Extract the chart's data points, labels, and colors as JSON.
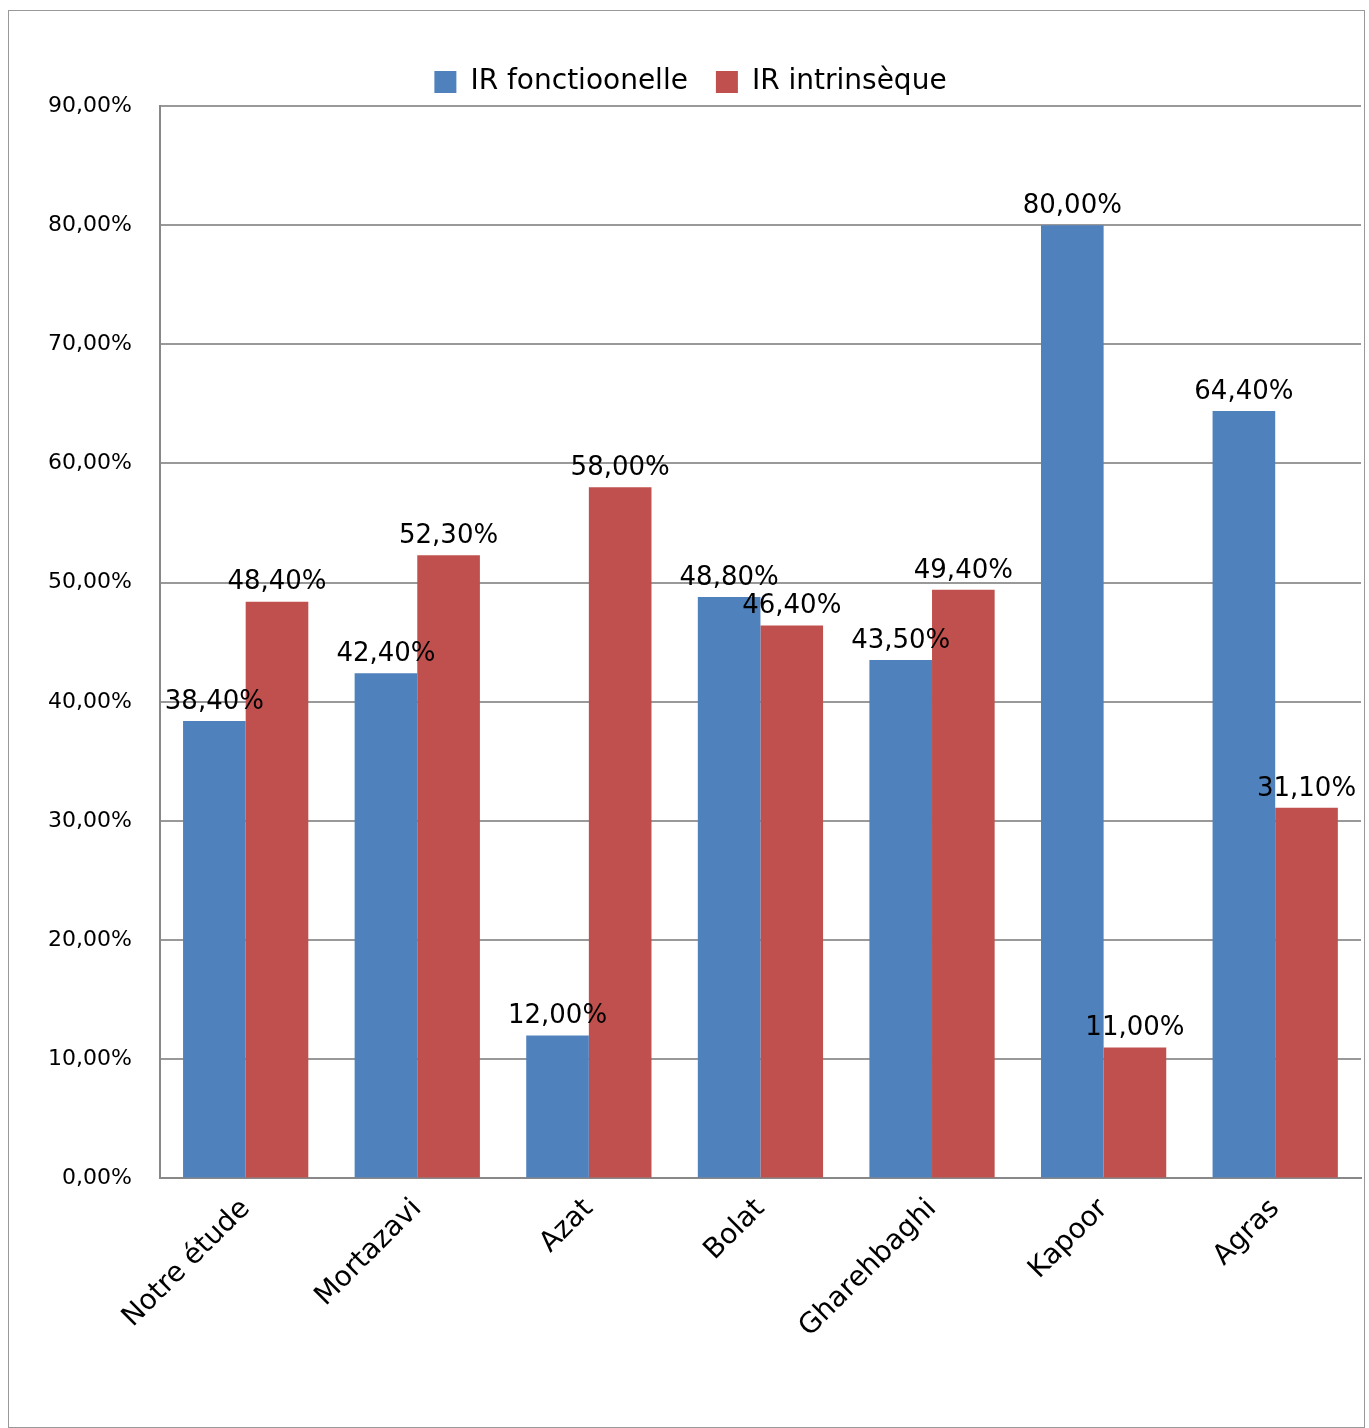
{
  "chart_data": {
    "type": "bar",
    "categories": [
      "Notre étude",
      "Mortazavi",
      "Azat",
      "Bolat",
      "Gharehbaghi",
      "Kapoor",
      "Agras"
    ],
    "series": [
      {
        "name": "IR fonctioonelle",
        "color": "#4f81bd",
        "values": [
          38.4,
          42.4,
          12,
          48.8,
          43.5,
          80,
          64.4
        ],
        "value_labels": [
          "38,40%",
          "42,40%",
          "12,00%",
          "48,80%",
          "43,50%",
          "80,00%",
          "64,40%"
        ]
      },
      {
        "name": "IR intrinsèque",
        "color": "#c0504d",
        "values": [
          48.4,
          52.3,
          58,
          46.4,
          49.4,
          11,
          31.1
        ],
        "value_labels": [
          "48,40%",
          "52,30%",
          "58,00%",
          "46,40%",
          "49,40%",
          "11,00%",
          "31,10%"
        ]
      }
    ],
    "ylim": [
      0,
      90
    ],
    "yticks": [
      {
        "value": 0,
        "label": "0,00%"
      },
      {
        "value": 10,
        "label": "10,00%"
      },
      {
        "value": 20,
        "label": "20,00%"
      },
      {
        "value": 30,
        "label": "30,00%"
      },
      {
        "value": 40,
        "label": "40,00%"
      },
      {
        "value": 50,
        "label": "50,00%"
      },
      {
        "value": 60,
        "label": "60,00%"
      },
      {
        "value": 70,
        "label": "70,00%"
      },
      {
        "value": 80,
        "label": "80,00%"
      },
      {
        "value": 90,
        "label": "90,00%"
      }
    ],
    "grid": "y",
    "legend": "top"
  }
}
